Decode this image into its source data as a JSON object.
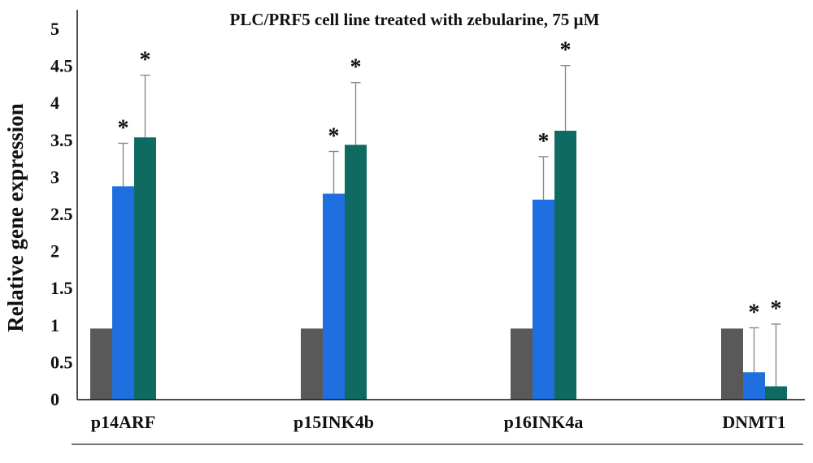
{
  "chart_data": {
    "type": "bar",
    "title": "PLC/PRF5 cell line treated with zebularine, 75 µM",
    "xlabel": "",
    "ylabel": "Relative gene expression",
    "ylim": [
      0,
      5
    ],
    "yticks": [
      "0",
      "0.5",
      "1",
      "1.5",
      "2",
      "2.5",
      "3",
      "3.5",
      "4",
      "4.5",
      "5"
    ],
    "grid": false,
    "legend": "none",
    "categories": [
      "p14ARF",
      "p15INK4b",
      "p16INK4a",
      "DNMT1"
    ],
    "series": [
      {
        "color": "#595959",
        "values": [
          0.96,
          0.96,
          0.96,
          0.96
        ],
        "errors": [
          0,
          0,
          0,
          0
        ],
        "significant": [
          false,
          false,
          false,
          false
        ]
      },
      {
        "color": "#1f6fe0",
        "values": [
          2.88,
          2.78,
          2.7,
          0.37
        ],
        "errors": [
          0.58,
          0.57,
          0.58,
          0.6
        ],
        "significant": [
          true,
          true,
          true,
          true
        ]
      },
      {
        "color": "#0f6b61",
        "values": [
          3.54,
          3.44,
          3.63,
          0.18
        ],
        "errors": [
          0.84,
          0.84,
          0.88,
          0.84
        ],
        "significant": [
          true,
          true,
          true,
          true
        ]
      }
    ],
    "significance_marker": "*"
  }
}
